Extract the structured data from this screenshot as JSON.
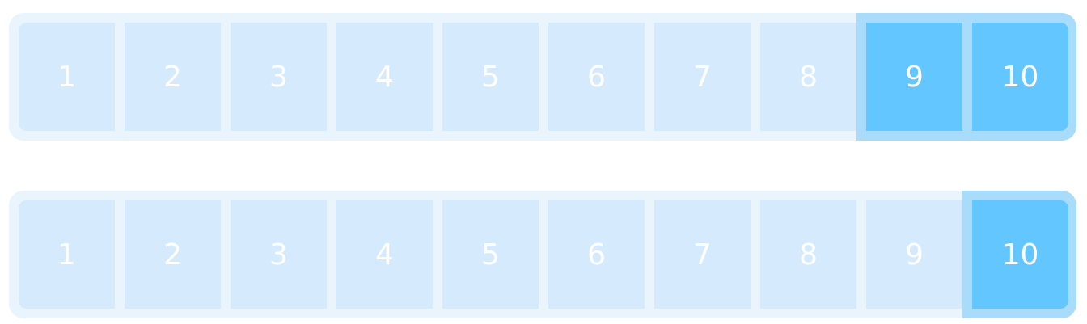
{
  "scales": [
    {
      "id": "scale-1",
      "options": [
        "1",
        "2",
        "3",
        "4",
        "5",
        "6",
        "7",
        "8",
        "9",
        "10"
      ],
      "selected": [
        "9",
        "10"
      ]
    },
    {
      "id": "scale-2",
      "options": [
        "1",
        "2",
        "3",
        "4",
        "5",
        "6",
        "7",
        "8",
        "9",
        "10"
      ],
      "selected": [
        "10"
      ]
    }
  ],
  "colors": {
    "track": "#e9f4fd",
    "cell": "#d5eafc",
    "selected_cell": "#63c6ff",
    "selected_frame": "#a9dcfb",
    "label": "#ffffff"
  }
}
